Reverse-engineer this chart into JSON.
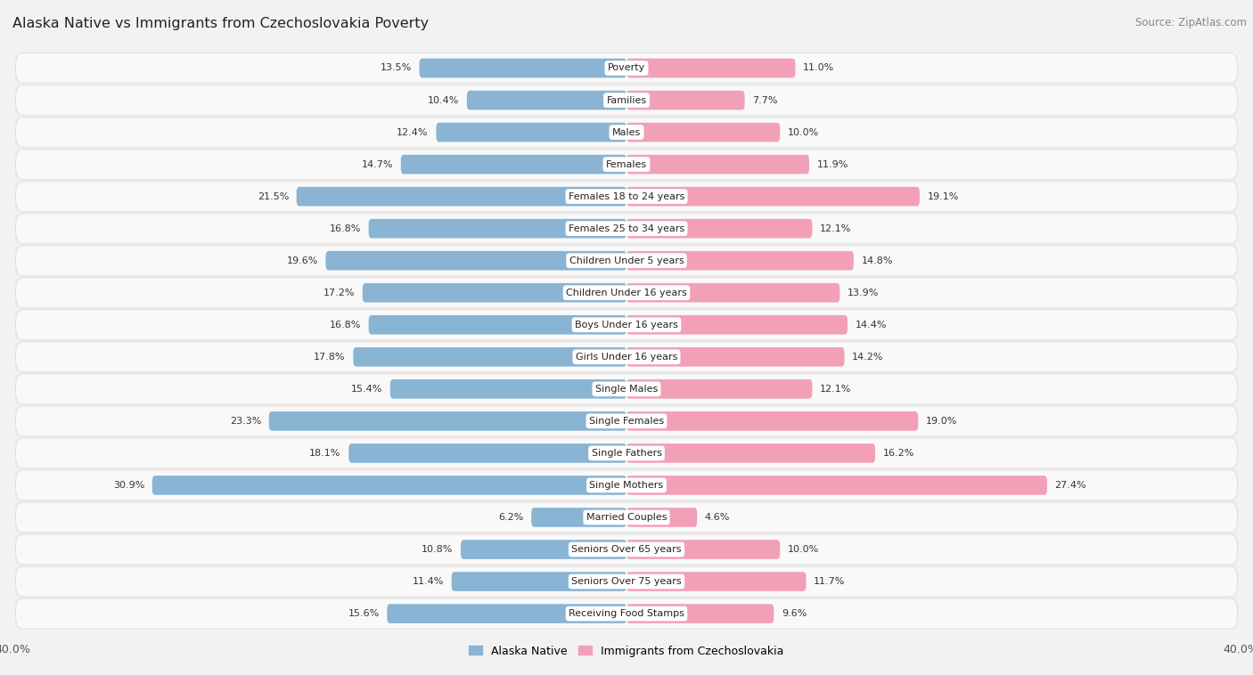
{
  "title": "Alaska Native vs Immigrants from Czechoslovakia Poverty",
  "source": "Source: ZipAtlas.com",
  "categories": [
    "Poverty",
    "Families",
    "Males",
    "Females",
    "Females 18 to 24 years",
    "Females 25 to 34 years",
    "Children Under 5 years",
    "Children Under 16 years",
    "Boys Under 16 years",
    "Girls Under 16 years",
    "Single Males",
    "Single Females",
    "Single Fathers",
    "Single Mothers",
    "Married Couples",
    "Seniors Over 65 years",
    "Seniors Over 75 years",
    "Receiving Food Stamps"
  ],
  "alaska_native": [
    13.5,
    10.4,
    12.4,
    14.7,
    21.5,
    16.8,
    19.6,
    17.2,
    16.8,
    17.8,
    15.4,
    23.3,
    18.1,
    30.9,
    6.2,
    10.8,
    11.4,
    15.6
  ],
  "czechoslovakia": [
    11.0,
    7.7,
    10.0,
    11.9,
    19.1,
    12.1,
    14.8,
    13.9,
    14.4,
    14.2,
    12.1,
    19.0,
    16.2,
    27.4,
    4.6,
    10.0,
    11.7,
    9.6
  ],
  "alaska_color": "#8ab4d4",
  "czech_color": "#f2a0b8",
  "bar_height": 0.6,
  "xlim": 40.0,
  "background_color": "#f2f2f2",
  "row_bg": "#f9f9f9",
  "row_border": "#e0e0e0",
  "title_fontsize": 11.5,
  "source_fontsize": 8.5,
  "tick_fontsize": 9,
  "label_fontsize": 8,
  "value_fontsize": 8
}
